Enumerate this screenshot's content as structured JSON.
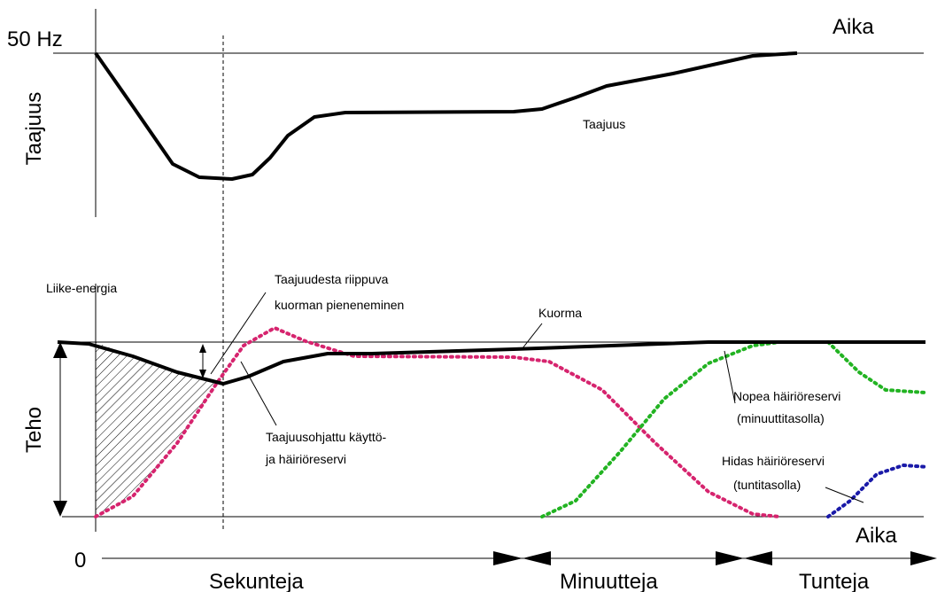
{
  "top_panel": {
    "frequency_label": "50 Hz",
    "time_label": "Aika",
    "y_axis_label": "Taajuus",
    "curve_label": "Taajuus"
  },
  "bottom_panel": {
    "kinetic_energy_label": "Liike-energia",
    "load_reduction_label": [
      "Taajuudesta riippuva",
      "kuorman pieneneminen"
    ],
    "load_label": "Kuorma",
    "y_axis_label": "Teho",
    "frequency_reserve_label": [
      "Taajuusohjattu käyttö-",
      "ja häiriöreservi"
    ],
    "fast_reserve_label": [
      "Nopea häiriöreservi",
      "(minuuttitasolla)"
    ],
    "slow_reserve_label": [
      "Hidas häiriöreservi",
      "(tuntitasolla)"
    ],
    "time_label": "Aika"
  },
  "time_scale": {
    "origin": "0",
    "segments": [
      "Sekunteja",
      "Minuutteja",
      "Tunteja"
    ]
  }
}
